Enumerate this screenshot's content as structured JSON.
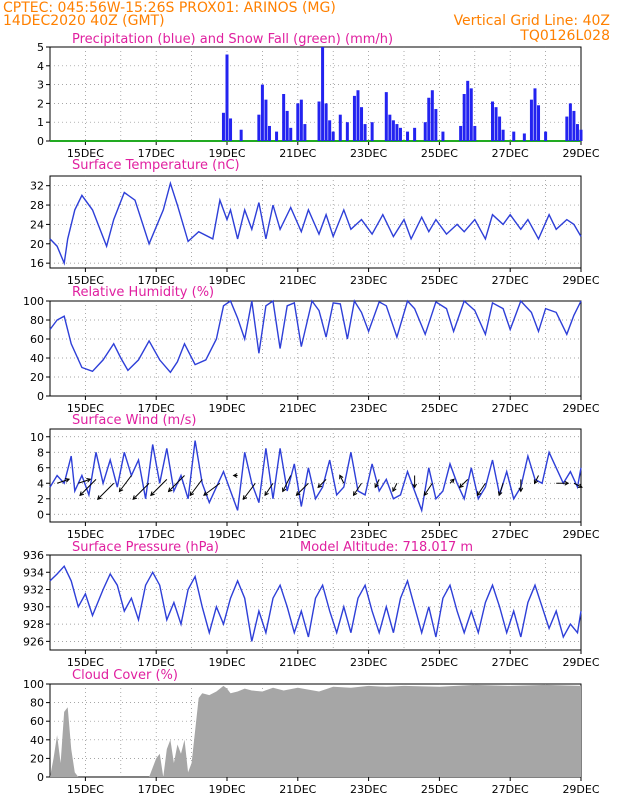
{
  "header": {
    "left_line1": "CPTEC:   045:56W-15:26S   PROX01: ARINOS (MG)",
    "left_line2": "14DEC2020 40Z (GMT)",
    "right_line2": "Vertical Grid Line: 40Z",
    "right_line3": "TQ0126L028"
  },
  "x_axis": {
    "labels": [
      "15DEC",
      "17DEC",
      "19DEC",
      "21DEC",
      "23DEC",
      "25DEC",
      "27DEC",
      "29DEC"
    ],
    "day_positions": [
      1,
      3,
      5,
      7,
      9,
      11,
      13,
      15
    ],
    "range_days": [
      0,
      15
    ]
  },
  "colors": {
    "line": "#2e3fd8",
    "bars": "#2323f0",
    "snow": "#22aa22",
    "cloud": "#a6a6a6",
    "title": "#e020a0",
    "header": "#ff8000",
    "grid": "#888888"
  },
  "chart_data": [
    {
      "type": "bar",
      "title": "Precipitation (blue) and Snow Fall (green) (mm/h)",
      "ylim": [
        0,
        5
      ],
      "yticks": [
        0,
        1,
        2,
        3,
        4,
        5
      ],
      "series": [
        {
          "name": "Precipitation",
          "x": [
            4.9,
            5.0,
            5.1,
            5.4,
            5.9,
            6.0,
            6.1,
            6.2,
            6.4,
            6.6,
            6.7,
            6.8,
            7.0,
            7.1,
            7.2,
            7.6,
            7.7,
            7.8,
            7.9,
            8.0,
            8.2,
            8.4,
            8.6,
            8.7,
            8.8,
            8.9,
            9.1,
            9.5,
            9.6,
            9.7,
            9.8,
            9.9,
            10.1,
            10.3,
            10.6,
            10.7,
            10.8,
            10.9,
            11.1,
            11.6,
            11.7,
            11.8,
            11.9,
            12.0,
            12.5,
            12.6,
            12.7,
            12.8,
            13.1,
            13.4,
            13.6,
            13.7,
            13.8,
            14.0,
            14.6,
            14.7,
            14.8,
            14.9,
            15.0
          ],
          "values": [
            1.5,
            4.6,
            1.2,
            0.6,
            1.4,
            3.0,
            2.2,
            0.8,
            0.5,
            2.5,
            1.6,
            0.7,
            2.0,
            2.2,
            0.9,
            2.1,
            5.0,
            2.0,
            1.1,
            0.5,
            1.4,
            1.0,
            2.4,
            2.7,
            1.8,
            0.9,
            1.0,
            2.6,
            1.4,
            1.1,
            0.9,
            0.7,
            0.5,
            0.7,
            1.0,
            2.3,
            2.7,
            1.7,
            0.5,
            0.8,
            2.5,
            3.2,
            2.8,
            0.8,
            2.1,
            1.8,
            1.3,
            0.6,
            0.5,
            0.4,
            2.2,
            2.8,
            1.9,
            0.5,
            1.3,
            2.0,
            1.6,
            0.9,
            0.6
          ]
        },
        {
          "name": "Snow Fall",
          "x": [
            0,
            15
          ],
          "values": [
            0,
            0
          ]
        }
      ]
    },
    {
      "type": "line",
      "title": "Surface Temperature (nC)",
      "ylim": [
        15,
        34
      ],
      "yticks": [
        16,
        20,
        24,
        28,
        32
      ],
      "series": [
        {
          "name": "Temperature",
          "x": [
            0.0,
            0.2,
            0.4,
            0.5,
            0.7,
            0.9,
            1.2,
            1.6,
            1.8,
            2.1,
            2.4,
            2.8,
            3.2,
            3.4,
            3.6,
            3.9,
            4.2,
            4.6,
            4.8,
            5.0,
            5.1,
            5.3,
            5.5,
            5.7,
            5.9,
            6.1,
            6.3,
            6.5,
            6.8,
            7.1,
            7.3,
            7.6,
            7.8,
            8.0,
            8.3,
            8.5,
            8.8,
            9.1,
            9.4,
            9.7,
            10.0,
            10.2,
            10.5,
            10.7,
            10.9,
            11.2,
            11.5,
            11.7,
            12.0,
            12.3,
            12.5,
            12.8,
            13.0,
            13.3,
            13.5,
            13.8,
            14.1,
            14.3,
            14.6,
            14.8,
            15.0
          ],
          "values": [
            21.0,
            19.5,
            16.0,
            21.0,
            27.0,
            30.0,
            27.0,
            19.5,
            25.0,
            30.6,
            29.0,
            20.0,
            27.0,
            32.5,
            28.0,
            20.5,
            22.5,
            21.0,
            29.0,
            25.0,
            27.0,
            21.0,
            27.0,
            23.0,
            28.5,
            21.0,
            28.0,
            23.0,
            27.5,
            22.5,
            27.0,
            22.0,
            26.0,
            21.5,
            27.0,
            23.0,
            25.0,
            22.0,
            26.0,
            21.5,
            25.0,
            21.0,
            25.5,
            22.5,
            25.0,
            22.0,
            24.0,
            22.5,
            25.0,
            21.0,
            26.0,
            24.0,
            26.0,
            23.0,
            25.0,
            21.0,
            26.0,
            23.0,
            25.0,
            24.0,
            21.5
          ]
        }
      ]
    },
    {
      "type": "line",
      "title": "Relative Humidity (%)",
      "ylim": [
        0,
        100
      ],
      "yticks": [
        0,
        20,
        40,
        60,
        80,
        100
      ],
      "series": [
        {
          "name": "Humidity",
          "x": [
            0.0,
            0.2,
            0.4,
            0.6,
            0.9,
            1.2,
            1.5,
            1.8,
            2.0,
            2.2,
            2.5,
            2.8,
            3.1,
            3.4,
            3.6,
            3.8,
            4.1,
            4.4,
            4.7,
            4.9,
            5.1,
            5.3,
            5.5,
            5.7,
            5.9,
            6.1,
            6.3,
            6.5,
            6.7,
            6.9,
            7.1,
            7.4,
            7.6,
            7.8,
            8.0,
            8.2,
            8.4,
            8.6,
            8.8,
            9.0,
            9.3,
            9.5,
            9.8,
            10.1,
            10.3,
            10.6,
            10.9,
            11.2,
            11.4,
            11.7,
            12.0,
            12.3,
            12.5,
            12.8,
            13.0,
            13.3,
            13.6,
            13.8,
            14.0,
            14.3,
            14.6,
            14.8,
            15.0
          ],
          "values": [
            70,
            80,
            84,
            55,
            30,
            26,
            38,
            55,
            40,
            27,
            38,
            58,
            38,
            25,
            36,
            55,
            33,
            38,
            60,
            95,
            100,
            82,
            60,
            100,
            45,
            95,
            100,
            50,
            95,
            98,
            52,
            100,
            90,
            62,
            98,
            97,
            60,
            100,
            88,
            68,
            99,
            95,
            62,
            100,
            92,
            65,
            99,
            92,
            68,
            100,
            90,
            65,
            98,
            92,
            70,
            100,
            88,
            68,
            92,
            88,
            65,
            85,
            100
          ]
        }
      ]
    },
    {
      "type": "line",
      "title": "Surface Wind (m/s)",
      "ylim": [
        -1,
        11
      ],
      "yticks": [
        0,
        2,
        4,
        6,
        8,
        10
      ],
      "series": [
        {
          "name": "Wind speed",
          "x": [
            0.0,
            0.2,
            0.4,
            0.6,
            0.7,
            0.9,
            1.1,
            1.3,
            1.5,
            1.7,
            1.9,
            2.1,
            2.3,
            2.5,
            2.7,
            2.9,
            3.1,
            3.3,
            3.5,
            3.7,
            3.9,
            4.1,
            4.3,
            4.5,
            4.7,
            4.9,
            5.1,
            5.3,
            5.5,
            5.7,
            5.9,
            6.1,
            6.3,
            6.5,
            6.7,
            6.9,
            7.1,
            7.3,
            7.5,
            7.7,
            7.9,
            8.1,
            8.3,
            8.5,
            8.7,
            8.9,
            9.1,
            9.3,
            9.5,
            9.7,
            9.9,
            10.1,
            10.3,
            10.5,
            10.7,
            10.9,
            11.1,
            11.3,
            11.5,
            11.7,
            11.9,
            12.1,
            12.3,
            12.5,
            12.7,
            12.9,
            13.1,
            13.3,
            13.5,
            13.7,
            13.9,
            14.1,
            14.3,
            14.5,
            14.7,
            14.9,
            15.0
          ],
          "values": [
            3.5,
            5.0,
            4.0,
            7.5,
            3.0,
            5.0,
            2.5,
            8.0,
            4.0,
            7.0,
            3.5,
            8.0,
            5.0,
            7.0,
            2.0,
            9.0,
            4.0,
            8.5,
            3.0,
            5.0,
            2.0,
            9.5,
            4.0,
            1.5,
            3.5,
            5.5,
            3.0,
            0.5,
            8.0,
            4.0,
            1.5,
            8.5,
            2.0,
            8.5,
            3.0,
            6.5,
            1.0,
            6.0,
            2.0,
            3.5,
            7.0,
            2.5,
            3.5,
            8.0,
            3.0,
            2.5,
            6.5,
            3.0,
            4.5,
            2.0,
            2.5,
            5.5,
            3.0,
            0.5,
            6.0,
            2.0,
            3.0,
            6.5,
            4.0,
            2.0,
            6.0,
            2.0,
            3.5,
            7.0,
            2.5,
            5.5,
            2.0,
            3.5,
            7.5,
            4.5,
            4.0,
            8.0,
            6.0,
            4.0,
            5.5,
            3.5,
            6.0
          ]
        },
        {
          "name": "Wind direction (arrows)",
          "x": [
            0.2,
            0.8,
            1.3,
            1.8,
            2.3,
            2.8,
            3.3,
            3.8,
            4.3,
            4.8,
            5.3,
            5.8,
            6.3,
            6.8,
            7.3,
            7.8,
            8.3,
            8.8,
            9.3,
            9.8,
            10.3,
            10.8,
            11.3,
            11.8,
            12.3,
            12.8,
            13.3,
            13.8,
            14.3,
            14.8
          ],
          "values": [
            4,
            4,
            4.5,
            4,
            5,
            4,
            4.5,
            5,
            4.5,
            4,
            5,
            4,
            4,
            5,
            4,
            4.5,
            4,
            4,
            4.5,
            4,
            5,
            4,
            4,
            4.5,
            4,
            4,
            4.5,
            5,
            4,
            4
          ],
          "u": [
            3,
            3,
            -4,
            -4,
            -3,
            -4,
            -4,
            -4,
            -3,
            -4,
            -1,
            -3,
            -2,
            -2,
            -3,
            -2,
            -1,
            -2,
            -1,
            -1,
            0,
            -2,
            1,
            -2,
            -2,
            -1,
            0,
            -1,
            3,
            2
          ],
          "v": [
            1,
            1,
            -4,
            -4,
            -4,
            -4,
            -4,
            -4,
            -4,
            -3,
            0,
            -4,
            -3,
            -4,
            -3,
            -2,
            2,
            -3,
            -2,
            -2,
            -3,
            -3,
            1,
            -2,
            -3,
            -3,
            -3,
            -2,
            0,
            -1
          ]
        }
      ]
    },
    {
      "type": "line",
      "title": "Surface Pressure (hPa)",
      "annotation": "Model Altitude: 718.017 m",
      "ylim": [
        925,
        936
      ],
      "yticks": [
        926,
        928,
        930,
        932,
        934,
        936
      ],
      "series": [
        {
          "name": "Pressure",
          "x": [
            0.0,
            0.2,
            0.4,
            0.6,
            0.8,
            1.0,
            1.2,
            1.5,
            1.7,
            1.9,
            2.1,
            2.3,
            2.5,
            2.7,
            2.9,
            3.1,
            3.3,
            3.5,
            3.7,
            3.9,
            4.1,
            4.3,
            4.5,
            4.7,
            4.9,
            5.1,
            5.3,
            5.5,
            5.7,
            5.9,
            6.1,
            6.3,
            6.5,
            6.7,
            6.9,
            7.1,
            7.3,
            7.5,
            7.7,
            7.9,
            8.1,
            8.3,
            8.5,
            8.7,
            8.9,
            9.1,
            9.3,
            9.5,
            9.7,
            9.9,
            10.1,
            10.3,
            10.5,
            10.7,
            10.9,
            11.1,
            11.3,
            11.5,
            11.7,
            11.9,
            12.1,
            12.3,
            12.5,
            12.7,
            12.9,
            13.1,
            13.3,
            13.5,
            13.7,
            13.9,
            14.1,
            14.3,
            14.5,
            14.7,
            14.9,
            15.0
          ],
          "values": [
            933.0,
            933.8,
            934.7,
            933.0,
            930.0,
            931.5,
            929.0,
            932.0,
            933.8,
            932.5,
            929.5,
            931.0,
            928.5,
            932.5,
            934.0,
            932.5,
            928.5,
            930.5,
            928.0,
            932.0,
            933.5,
            930.0,
            927.0,
            930.0,
            928.0,
            931.0,
            933.0,
            931.0,
            926.0,
            929.5,
            927.0,
            931.0,
            932.5,
            930.0,
            927.0,
            929.5,
            926.5,
            931.0,
            932.5,
            929.5,
            927.0,
            930.0,
            927.0,
            931.0,
            932.5,
            929.5,
            927.0,
            930.0,
            927.0,
            931.0,
            933.0,
            930.0,
            927.0,
            930.0,
            926.5,
            931.0,
            932.5,
            929.5,
            927.0,
            929.5,
            927.0,
            930.5,
            932.5,
            930.0,
            927.0,
            929.5,
            926.5,
            930.5,
            932.5,
            930.0,
            927.5,
            929.5,
            926.5,
            928.0,
            927.0,
            929.5
          ]
        }
      ]
    },
    {
      "type": "area",
      "title": "Cloud Cover (%)",
      "ylim": [
        0,
        100
      ],
      "yticks": [
        0,
        20,
        40,
        60,
        80,
        100
      ],
      "series": [
        {
          "name": "Cloud Cover",
          "x": [
            0.0,
            0.1,
            0.2,
            0.3,
            0.4,
            0.5,
            0.6,
            0.7,
            0.8,
            1.0,
            1.5,
            2.0,
            2.5,
            2.8,
            3.0,
            3.1,
            3.2,
            3.3,
            3.4,
            3.5,
            3.6,
            3.7,
            3.8,
            3.9,
            4.0,
            4.1,
            4.2,
            4.3,
            4.5,
            4.7,
            4.9,
            5.0,
            5.1,
            5.3,
            5.5,
            5.7,
            6.0,
            6.3,
            6.6,
            7.0,
            7.3,
            7.6,
            8.0,
            8.5,
            9.0,
            9.5,
            10.0,
            11.0,
            12.0,
            13.0,
            14.0,
            15.0
          ],
          "values": [
            0,
            20,
            45,
            15,
            70,
            75,
            30,
            5,
            0,
            0,
            0,
            0,
            0,
            0,
            20,
            25,
            0,
            30,
            40,
            15,
            35,
            25,
            40,
            5,
            15,
            50,
            85,
            90,
            88,
            92,
            98,
            95,
            90,
            92,
            95,
            93,
            92,
            96,
            93,
            96,
            94,
            92,
            97,
            96,
            98,
            97,
            98,
            97,
            99,
            98,
            99,
            98
          ]
        }
      ]
    }
  ]
}
